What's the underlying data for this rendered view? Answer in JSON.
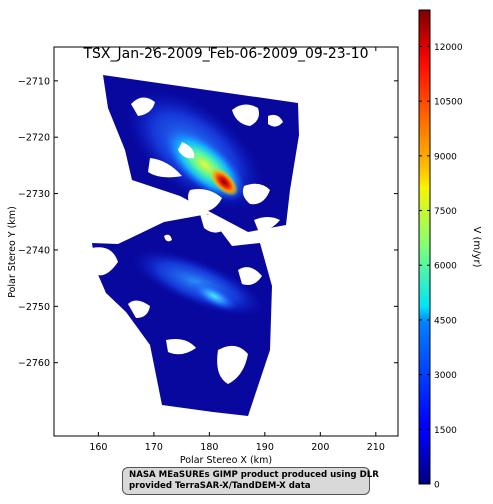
{
  "chart_data": {
    "type": "heatmap",
    "title": "TSX_Jan-26-2009_Feb-06-2009_09-23-10",
    "xlabel": "Polar Stereo X (km)",
    "ylabel": "Polar Stereo Y (km)",
    "xlim": [
      152,
      214
    ],
    "ylim": [
      -2773,
      -2704
    ],
    "x_ticks": [
      160,
      170,
      180,
      190,
      200,
      210
    ],
    "y_ticks": [
      -2710,
      -2720,
      -2730,
      -2740,
      -2750,
      -2760
    ],
    "colorbar": {
      "label": "V (m/yr)",
      "range": [
        0,
        13000
      ],
      "ticks": [
        0,
        1500,
        3000,
        4500,
        6000,
        7500,
        9000,
        10500,
        12000
      ],
      "colormap": "jet"
    },
    "colors": {
      "background": "#08089e",
      "fast_core": "#8b0000"
    },
    "velocity_features": [
      {
        "x_km": 182.5,
        "y_km": -2723.5,
        "v_m_per_yr": 12500
      },
      {
        "x_km": 180.5,
        "y_km": -2720,
        "v_m_per_yr": 7500
      },
      {
        "x_km": 176,
        "y_km": -2716.5,
        "v_m_per_yr": 3500
      },
      {
        "x_km": 183.5,
        "y_km": -2747,
        "v_m_per_yr": 3000
      }
    ]
  },
  "credit": {
    "line1": "NASA MEaSUREs GIMP product produced using DLR",
    "line2": "provided TerraSAR-X/TandDEM-X data"
  }
}
